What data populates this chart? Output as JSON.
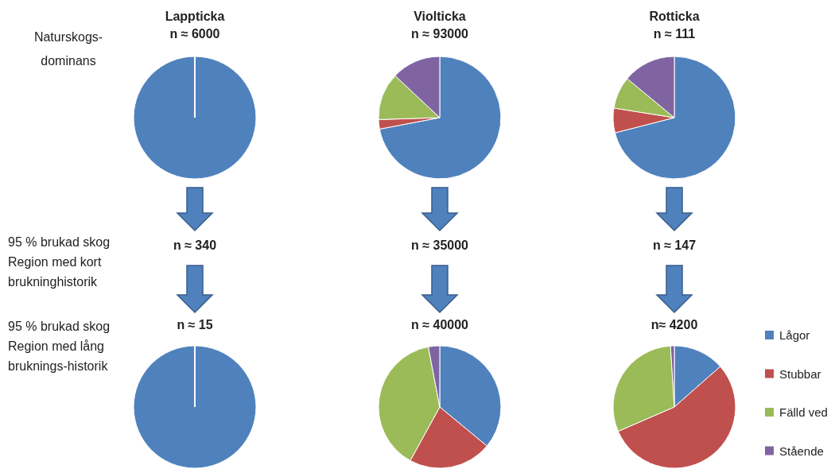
{
  "chart_data": [
    {
      "type": "pie",
      "title": "Lappticka",
      "subtitle": "n ≈ 6000",
      "categories": [
        null,
        null,
        null,
        null
      ],
      "values": [
        100,
        0,
        0,
        0
      ],
      "colors": [
        "#4f81bd",
        "#c0504d",
        "#9bbb59",
        "#8064a2"
      ],
      "annotations": [
        "Naturskogs-\ndominans",
        "95 % brukad skog\nRegion med kort\nbrukninghistorik",
        "n ≈ 340"
      ]
    },
    {
      "type": "pie",
      "title": "Violticka",
      "subtitle": "n ≈ 93000",
      "categories": [
        null,
        null,
        null,
        null
      ],
      "values": [
        72,
        2.5,
        12.5,
        13
      ],
      "colors": [
        "#4f81bd",
        "#c0504d",
        "#9bbb59",
        "#8064a2"
      ],
      "annotations": [
        "n ≈ 35000"
      ]
    },
    {
      "type": "pie",
      "title": "Rotticka",
      "subtitle": "n ≈ 111",
      "categories": [
        null,
        null,
        null,
        null
      ],
      "values": [
        71,
        6.5,
        8.5,
        14
      ],
      "colors": [
        "#4f81bd",
        "#c0504d",
        "#9bbb59",
        "#8064a2"
      ],
      "annotations": [
        "n ≈ 147"
      ]
    },
    {
      "type": "pie",
      "subtitle": "n ≈ 15",
      "categories": [
        null,
        null,
        null,
        null
      ],
      "values": [
        100,
        0,
        0,
        0
      ],
      "colors": [
        "#4f81bd",
        "#c0504d",
        "#9bbb59",
        "#8064a2"
      ],
      "annotations": [
        "95 % brukad skog\nRegion med lång\nbruknings-historik"
      ]
    },
    {
      "type": "pie",
      "subtitle": "n ≈ 40000",
      "categories": [
        null,
        null,
        null,
        null
      ],
      "values": [
        36,
        22,
        39,
        3
      ],
      "colors": [
        "#4f81bd",
        "#c0504d",
        "#9bbb59",
        "#8064a2"
      ]
    },
    {
      "type": "pie",
      "subtitle": "n≈ 4200",
      "categories": [
        "Lågor",
        "Stubbar",
        "Fälld ved",
        "Stående"
      ],
      "values": [
        13.5,
        55,
        30.5,
        1
      ],
      "colors": [
        "#4f81bd",
        "#c0504d",
        "#9bbb59",
        "#8064a2"
      ],
      "legend": "right"
    }
  ]
}
